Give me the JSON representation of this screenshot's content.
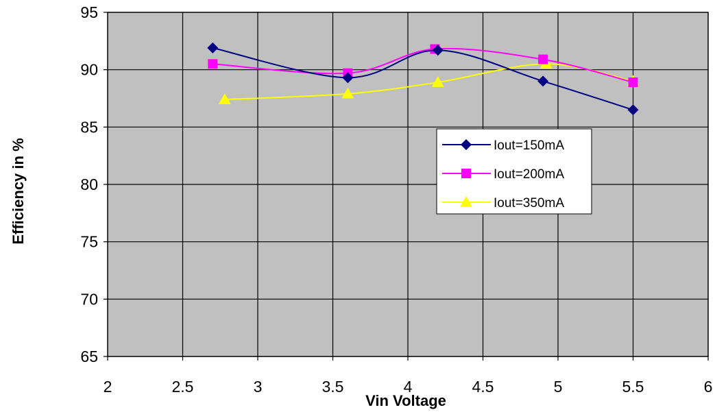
{
  "chart_data": {
    "type": "scatter",
    "title": "",
    "xlabel": "Vin Voltage",
    "ylabel": "Efficiency in %",
    "xlim": [
      2,
      6
    ],
    "ylim": [
      65,
      95
    ],
    "x_ticks": [
      "2",
      "2.5",
      "3",
      "3.5",
      "4",
      "4.5",
      "5",
      "5.5",
      "6"
    ],
    "y_ticks": [
      "65",
      "70",
      "75",
      "80",
      "85",
      "90",
      "95"
    ],
    "grid": true,
    "plot_background": "#c0c0c0",
    "legend_position": "right",
    "smoothed_lines": true,
    "series": [
      {
        "name": "Iout=150mA",
        "color": "#000080",
        "marker": "diamond",
        "points": [
          [
            2.7,
            91.9
          ],
          [
            3.6,
            89.3
          ],
          [
            4.2,
            91.7
          ],
          [
            4.9,
            89.0
          ],
          [
            5.5,
            86.5
          ]
        ]
      },
      {
        "name": "Iout=200mA",
        "color": "#ff00ff",
        "marker": "square",
        "points": [
          [
            2.7,
            90.5
          ],
          [
            3.6,
            89.7
          ],
          [
            4.18,
            91.8
          ],
          [
            4.9,
            90.9
          ],
          [
            5.5,
            88.9
          ]
        ]
      },
      {
        "name": "Iout=350mA",
        "color": "#ffff00",
        "marker": "triangle",
        "points": [
          [
            2.78,
            87.4
          ],
          [
            3.6,
            87.9
          ],
          [
            4.2,
            88.9
          ],
          [
            4.92,
            90.5
          ],
          [
            5.5,
            89.0
          ]
        ]
      }
    ]
  }
}
